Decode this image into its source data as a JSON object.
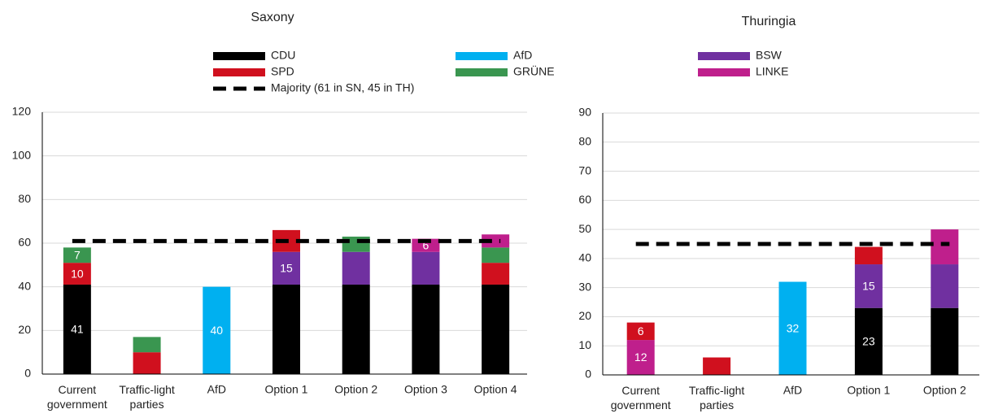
{
  "majority_label": "Majority (61 in SN, 45 in TH)",
  "chart_data": [
    {
      "type": "bar",
      "stacked": true,
      "title": "Saxony",
      "categories": [
        "Current government",
        "Traffic-light parties",
        "AfD",
        "Option 1",
        "Option 2",
        "Option 3",
        "Option 4"
      ],
      "ylim": [
        0,
        120
      ],
      "yticks": [
        0,
        20,
        40,
        60,
        80,
        100,
        120
      ],
      "grid": true,
      "majority": 61,
      "series": [
        {
          "name": "CDU",
          "color": "#000000",
          "values": [
            41,
            null,
            null,
            41,
            41,
            41,
            41
          ],
          "labeled": [
            true,
            false,
            false,
            false,
            false,
            false,
            false
          ]
        },
        {
          "name": "BSW",
          "color": "#7030a0",
          "values": [
            null,
            null,
            null,
            15,
            15,
            15,
            null
          ],
          "labeled": [
            false,
            false,
            false,
            true,
            false,
            false,
            false
          ]
        },
        {
          "name": "SPD",
          "color": "#d0101e",
          "values": [
            10,
            10,
            null,
            10,
            null,
            null,
            10
          ],
          "labeled": [
            true,
            false,
            false,
            false,
            false,
            false,
            false
          ]
        },
        {
          "name": "GRÜNE",
          "color": "#3a9650",
          "values": [
            7,
            7,
            null,
            null,
            7,
            null,
            7
          ],
          "labeled": [
            true,
            false,
            false,
            false,
            false,
            false,
            false
          ]
        },
        {
          "name": "LINKE",
          "color": "#bf1f8c",
          "values": [
            null,
            null,
            null,
            null,
            null,
            6,
            6
          ],
          "labeled": [
            false,
            false,
            false,
            false,
            false,
            true,
            false
          ]
        },
        {
          "name": "AfD",
          "color": "#00b0f0",
          "values": [
            null,
            null,
            40,
            null,
            null,
            null,
            null
          ],
          "labeled": [
            false,
            false,
            true,
            false,
            false,
            false,
            false
          ]
        }
      ]
    },
    {
      "type": "bar",
      "stacked": true,
      "title": "Thuringia",
      "categories": [
        "Current government",
        "Traffic-light parties",
        "AfD",
        "Option 1",
        "Option 2"
      ],
      "ylim": [
        0,
        90
      ],
      "yticks": [
        0,
        10,
        20,
        30,
        40,
        50,
        60,
        70,
        80,
        90
      ],
      "grid": true,
      "majority": 45,
      "series": [
        {
          "name": "CDU",
          "color": "#000000",
          "values": [
            null,
            null,
            null,
            23,
            23
          ],
          "labeled": [
            false,
            false,
            false,
            true,
            false
          ]
        },
        {
          "name": "BSW",
          "color": "#7030a0",
          "values": [
            null,
            null,
            null,
            15,
            15
          ],
          "labeled": [
            false,
            false,
            false,
            true,
            false
          ]
        },
        {
          "name": "LINKE",
          "color": "#bf1f8c",
          "values": [
            12,
            null,
            null,
            null,
            12
          ],
          "labeled": [
            true,
            false,
            false,
            false,
            false
          ]
        },
        {
          "name": "SPD",
          "color": "#d0101e",
          "values": [
            6,
            6,
            null,
            6,
            null
          ],
          "labeled": [
            true,
            false,
            false,
            false,
            false
          ]
        },
        {
          "name": "AfD",
          "color": "#00b0f0",
          "values": [
            null,
            null,
            32,
            null,
            null
          ],
          "labeled": [
            false,
            false,
            true,
            false,
            false
          ]
        }
      ]
    }
  ]
}
